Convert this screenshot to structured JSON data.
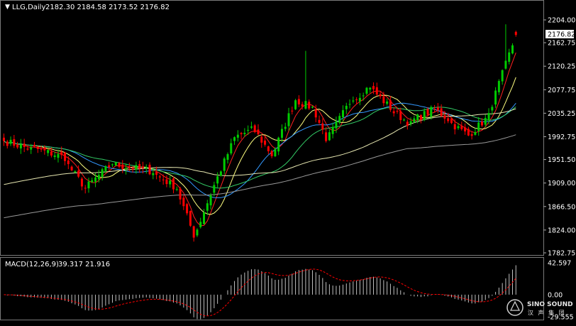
{
  "header": {
    "symbol_timeframe": "LLG,Daily",
    "ohlc": "2182.30 2184.58 2173.52 2176.82",
    "dropdown_marker": "▼"
  },
  "macd_header": {
    "label": "MACD(12,26,9)",
    "values": "39.317 21.916"
  },
  "price_badge": "2176.82",
  "watermark": {
    "brand": "SINO SOUND",
    "cjk": "汉 声 集 团"
  },
  "colors": {
    "background": "#000000",
    "bull_candle": "#00cc00",
    "bear_candle": "#ff0000",
    "axis_text": "#ffffff",
    "grid": "#3a3a3a",
    "ma_short": "#ff2020",
    "ma_yellow": "#ffff80",
    "ma_blue": "#3399ff",
    "ma_green": "#33cc66",
    "ma_long1": "#e6e6b0",
    "ma_long2": "#999999",
    "macd_hist": "#c0c0c0",
    "macd_signal": "#ff0000"
  },
  "chart_data": [
    {
      "type": "candlestick",
      "title": "LLG,Daily",
      "yaxis_ticks": [
        "2204.00",
        "2162.75",
        "2120.25",
        "2077.75",
        "2035.25",
        "1992.75",
        "1951.50",
        "1909.00",
        "1866.50",
        "1824.00",
        "1782.75"
      ],
      "ylim": [
        1782.75,
        2204.0
      ],
      "last_price": 2176.82,
      "last_ohlc": {
        "open": 2182.3,
        "high": 2184.58,
        "low": 2173.52,
        "close": 2176.82
      },
      "segments": [
        {
          "n": 8,
          "end": 1970
        },
        {
          "n": 10,
          "end": 1955
        },
        {
          "n": 6,
          "end": 1900
        },
        {
          "n": 8,
          "end": 1945
        },
        {
          "n": 12,
          "end": 1930
        },
        {
          "n": 7,
          "end": 1900
        },
        {
          "n": 5,
          "end": 1815
        },
        {
          "n": 6,
          "end": 1905
        },
        {
          "n": 6,
          "end": 1990
        },
        {
          "n": 5,
          "end": 2005
        },
        {
          "n": 6,
          "end": 1960
        },
        {
          "n": 7,
          "end": 2060
        },
        {
          "n": 5,
          "end": 2045
        },
        {
          "n": 4,
          "end": 1990
        },
        {
          "n": 8,
          "end": 2065
        },
        {
          "n": 5,
          "end": 2085
        },
        {
          "n": 6,
          "end": 2045
        },
        {
          "n": 6,
          "end": 2015
        },
        {
          "n": 6,
          "end": 2040
        },
        {
          "n": 5,
          "end": 2025
        },
        {
          "n": 6,
          "end": 1995
        },
        {
          "n": 6,
          "end": 2030
        },
        {
          "n": 8,
          "end": 2176.82
        }
      ],
      "overlays": [
        {
          "name": "MA-short",
          "period": 5,
          "color": "#ff2020"
        },
        {
          "name": "MA-yellow",
          "period": 10,
          "color": "#ffff80"
        },
        {
          "name": "MA-blue",
          "period": 20,
          "color": "#3399ff"
        },
        {
          "name": "MA-green",
          "period": 30,
          "color": "#33cc66"
        },
        {
          "name": "MA-long1",
          "period": 60,
          "color": "#e6e6b0"
        },
        {
          "name": "MA-long2",
          "period": 120,
          "color": "#999999"
        }
      ]
    },
    {
      "type": "bar",
      "title": "MACD(12,26,9)",
      "main_value": 39.317,
      "signal_value": 21.916,
      "yaxis_ticks": [
        "42.597",
        "0.00",
        "-29.555"
      ],
      "ylim": [
        -29.555,
        42.597
      ]
    }
  ]
}
